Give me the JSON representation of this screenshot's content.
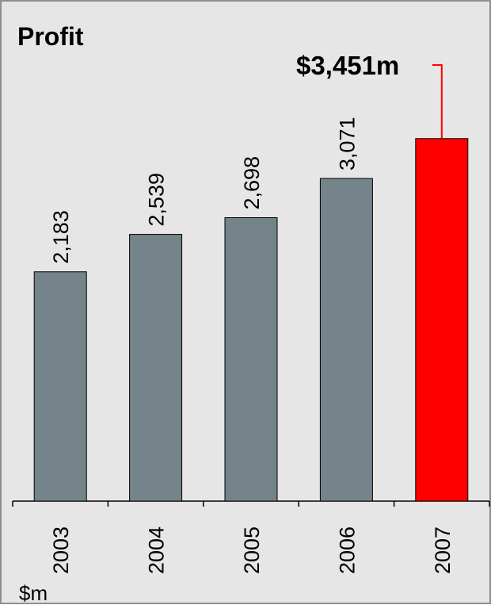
{
  "chart_data": {
    "type": "bar",
    "title": "Profit",
    "units_label": "$m",
    "callout_label": "$3,451m",
    "categories": [
      "2003",
      "2004",
      "2005",
      "2006",
      "2007"
    ],
    "values": [
      2183,
      2539,
      2698,
      3071,
      3451
    ],
    "data_labels": [
      "2,183",
      "2,539",
      "2,698",
      "3,071",
      ""
    ],
    "highlight_index": 4,
    "ylim": [
      0,
      3500
    ],
    "grid": false,
    "legend": "none",
    "colors": {
      "bar": "#75848a",
      "highlight": "#ff0000",
      "background": "#e6e6e6",
      "axis": "#000000",
      "callout_line": "#ff0000"
    }
  }
}
